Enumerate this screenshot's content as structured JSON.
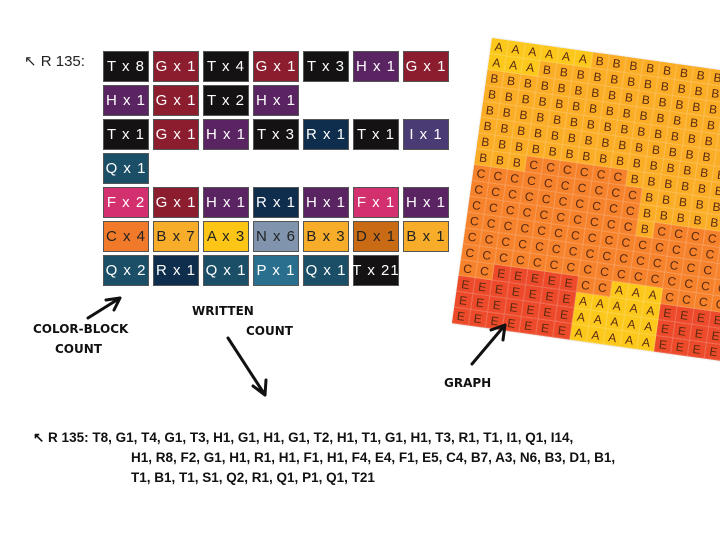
{
  "row_label": "↖ R 135:",
  "colors": {
    "T": "#141212",
    "G": "#8c1d2f",
    "H": "#5a2462",
    "R": "#0f2d4c",
    "I": "#4b3b74",
    "Q": "#1b4f68",
    "F": "#d3306f",
    "C": "#f07a2a",
    "B": "#f8ad2a",
    "A": "#fdc616",
    "N": "#8095ad",
    "D": "#c96a14",
    "P": "#2a6f8d"
  },
  "block_rows": [
    [
      "T x 8",
      "G x 1",
      "T x 4",
      "G x 1",
      "T x 3",
      "H x 1",
      "G x 1",
      "H x 1",
      "G x 1",
      "T x 2",
      "H x 1"
    ],
    [
      "T x 1",
      "G x 1",
      "H x 1",
      "T x 3",
      "R x 1",
      "T x 1",
      "I x 1",
      "Q x 1"
    ],
    [
      "F x 2",
      "G x 1",
      "H x 1",
      "R x 1",
      "H x 1",
      "F x 1",
      "H x 1"
    ],
    [
      "C x 4",
      "B x 7",
      "A x 3",
      "N x 6",
      "B x 3",
      "D x 1",
      "B x 1"
    ],
    [
      "Q x 2",
      "R x 1",
      "Q x 1",
      "P x 1",
      "Q x 1",
      "T x 21"
    ]
  ],
  "graph": {
    "colors": {
      "A": "#fcc81c",
      "B": "#fbad26",
      "C": "#f6822c",
      "E": "#ec4a2a"
    },
    "rows": [
      "AAAAAABBBBBBBBBB",
      "AAABBBBBBBBBBBBB",
      "BBBBBBBBBBBBBBBB",
      "BBBBBBBBBBBBBBBB",
      "BBBBBBBBBBBBBBBB",
      "BBBBBBBBBBBBBBBB",
      "BBBBBBBBBBBBBBBB",
      "BBBCCCCCCBBBBBBB",
      "CCCCCCCCCCBBBBBB",
      "CCCCCCCCCCBBBBBB",
      "CCCCCCCCCCBCCCCC",
      "CCCCCCCCCCCCCCCC",
      "CCCCCCCCCCCCCCCC",
      "CCCCCCCCCCCCCCCC",
      "CCEEEEECCAAACCCC",
      "EEEEEEEAAAAAEEEE",
      "EEEEEEEAAAAAEEEE",
      "EEEEEEEAAAAAEEEE"
    ]
  },
  "annotations": {
    "color_block_1": "COLOR-BLOCK",
    "color_block_2": "COUNT",
    "written_1": "WRITTEN",
    "written_2": "COUNT",
    "graph": "GRAPH"
  },
  "written_count": {
    "line1": "↖ R 135: T8, G1, T4, G1, T3, H1, G1, H1, G1, T2, H1, T1, G1, H1, T3, R1, T1, I1, Q1, I14,",
    "line2": "H1, R8, F2, G1, H1, R1, H1, F1, H1, F4, E4, F1, E5, C4, B7, A3, N6, B3, D1, B1,",
    "line3": "T1, B1, T1, S1, Q2, R1, Q1, P1, Q1, T21"
  }
}
